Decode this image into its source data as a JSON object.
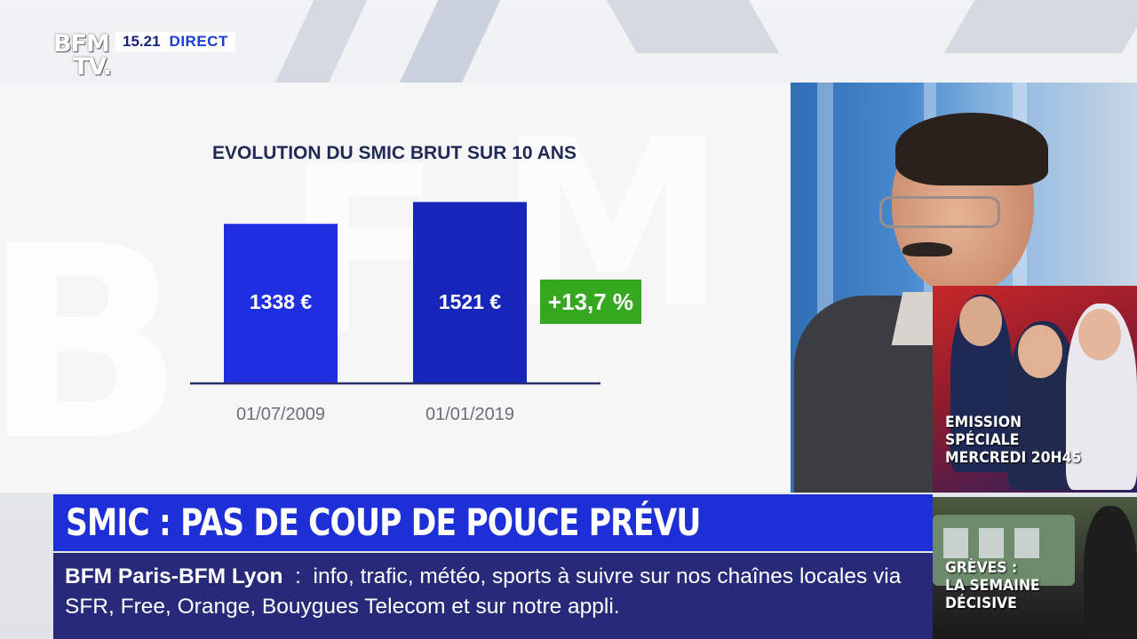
{
  "broadcast": {
    "logo_line1": "BFM",
    "logo_line2": "TV.",
    "time": "15.21",
    "live_label": "DIRECT"
  },
  "chart_data": {
    "type": "bar",
    "title": "EVOLUTION DU SMIC BRUT SUR 10 ANS",
    "categories": [
      "01/07/2009",
      "01/01/2019"
    ],
    "values": [
      1338,
      1521
    ],
    "value_labels": [
      "1338 €",
      "1521 €"
    ],
    "unit": "€",
    "ylim": [
      0,
      1600
    ],
    "annotation": "+13,7 %",
    "colors": {
      "bar_2009": "#1f2fe0",
      "bar_2019": "#1626b8",
      "annotation_bg": "#35a81f",
      "baseline": "#2a2f6a",
      "title": "#1f2a56"
    }
  },
  "headline": {
    "text": "SMIC : PAS DE COUP DE POUCE PRÉVU"
  },
  "ticker": {
    "source": "BFM Paris-BFM Lyon",
    "separator": ":",
    "message": "info, trafic, météo, sports à suivre sur nos chaînes locales via SFR, Free, Orange, Bouygues Telecom et sur notre appli."
  },
  "promos": [
    {
      "lines": [
        "EMISSION",
        "SPÉCIALE",
        "MERCREDI 20H45"
      ]
    },
    {
      "lines": [
        "GRÈVES :",
        "LA SEMAINE",
        "DÉCISIVE"
      ]
    }
  ],
  "colors": {
    "headline_bg": "#1d2fd6",
    "ticker_bg": "#272a78",
    "live_text": "#1a3bd6"
  }
}
